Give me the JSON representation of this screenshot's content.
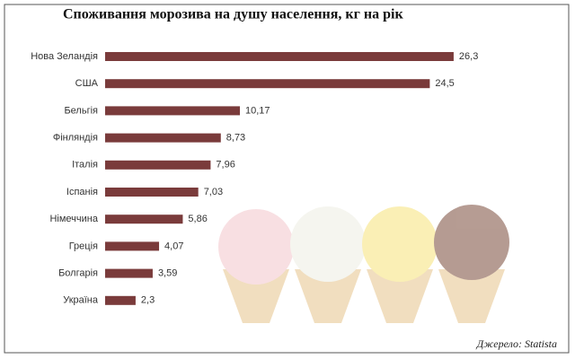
{
  "chart_data": {
    "type": "bar",
    "orientation": "horizontal",
    "title": "Споживання морозива на душу населення, кг на рік",
    "categories": [
      "Нова Зеландія",
      "США",
      "Бельгія",
      "Фінляндія",
      "Італія",
      "Іспанія",
      "Німеччина",
      "Греція",
      "Болгарія",
      "Україна"
    ],
    "values": [
      26.3,
      24.5,
      10.17,
      8.73,
      7.96,
      7.03,
      5.86,
      4.07,
      3.59,
      2.3
    ],
    "value_labels": [
      "26,3",
      "24,5",
      "10,17",
      "8,73",
      "7,96",
      "7,03",
      "5,86",
      "4,07",
      "3,59",
      "2,3"
    ],
    "color": "#7a3b3b",
    "source": "Джерело: Statista"
  }
}
